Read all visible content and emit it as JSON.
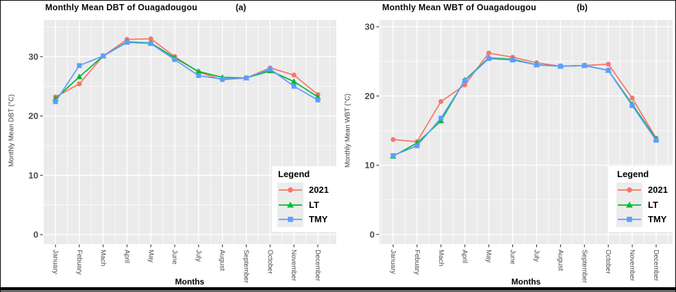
{
  "style": {
    "panel_bg": "#EBEBEB",
    "grid_color": "#FFFFFF",
    "axis_text_color": "#4D4D4D",
    "tick_color": "#333333",
    "legend_bg": "#FFFFFF",
    "legend_key_bg": "#ECECEC",
    "frame_color": "#000000"
  },
  "chart_data": [
    {
      "type": "line",
      "title": "Monthly Mean DBT of Ouagadougou",
      "tag": "(a)",
      "xlabel": "Months",
      "ylabel": "Monthly Mean DBT (°C)",
      "legend_title": "Legend",
      "legend_position": "inside-bottom-right",
      "grid": "major-and-minor",
      "categories": [
        "January",
        "Febuary",
        "Mach",
        "April",
        "May",
        "June",
        "July",
        "August",
        "September",
        "October",
        "November",
        "December"
      ],
      "yticks": [
        0,
        10,
        20,
        30
      ],
      "ylim": [
        -1.6,
        36.2
      ],
      "series": [
        {
          "name": "2021",
          "color": "#F8766D",
          "marker": "circle",
          "values": [
            23.2,
            25.4,
            30.1,
            32.9,
            33.0,
            30.0,
            27.4,
            26.1,
            26.4,
            28.1,
            26.9,
            23.6
          ]
        },
        {
          "name": "LT",
          "color": "#00BA38",
          "marker": "triangle",
          "values": [
            22.9,
            26.6,
            30.1,
            32.5,
            32.3,
            29.8,
            27.5,
            26.5,
            26.4,
            27.6,
            25.8,
            23.2
          ]
        },
        {
          "name": "TMY",
          "color": "#619CFF",
          "marker": "square",
          "values": [
            22.4,
            28.5,
            30.1,
            32.4,
            32.2,
            29.5,
            26.8,
            26.2,
            26.4,
            27.9,
            25.0,
            22.7
          ]
        }
      ]
    },
    {
      "type": "line",
      "title": "Monthly Mean WBT of Ouagadougou",
      "tag": "(b)",
      "xlabel": "Months",
      "ylabel": "Monthly Mean WBT (°C)",
      "legend_title": "Legend",
      "legend_position": "inside-bottom-right",
      "grid": "major-and-minor",
      "categories": [
        "January",
        "Febuary",
        "Mach",
        "April",
        "May",
        "June",
        "July",
        "August",
        "September",
        "October",
        "November",
        "December"
      ],
      "yticks": [
        0,
        10,
        20,
        30
      ],
      "ylim": [
        -1.4,
        31.0
      ],
      "series": [
        {
          "name": "2021",
          "color": "#F8766D",
          "marker": "circle",
          "values": [
            13.7,
            13.4,
            19.2,
            21.6,
            26.2,
            25.6,
            24.8,
            24.3,
            24.4,
            24.6,
            19.7,
            13.9
          ]
        },
        {
          "name": "LT",
          "color": "#00BA38",
          "marker": "triangle",
          "values": [
            11.3,
            13.2,
            16.4,
            22.3,
            25.5,
            25.3,
            24.5,
            24.3,
            24.4,
            23.7,
            18.8,
            13.8
          ]
        },
        {
          "name": "TMY",
          "color": "#619CFF",
          "marker": "square",
          "values": [
            11.4,
            12.8,
            16.8,
            22.2,
            25.4,
            25.2,
            24.5,
            24.3,
            24.4,
            23.7,
            18.6,
            13.6
          ]
        }
      ]
    }
  ]
}
